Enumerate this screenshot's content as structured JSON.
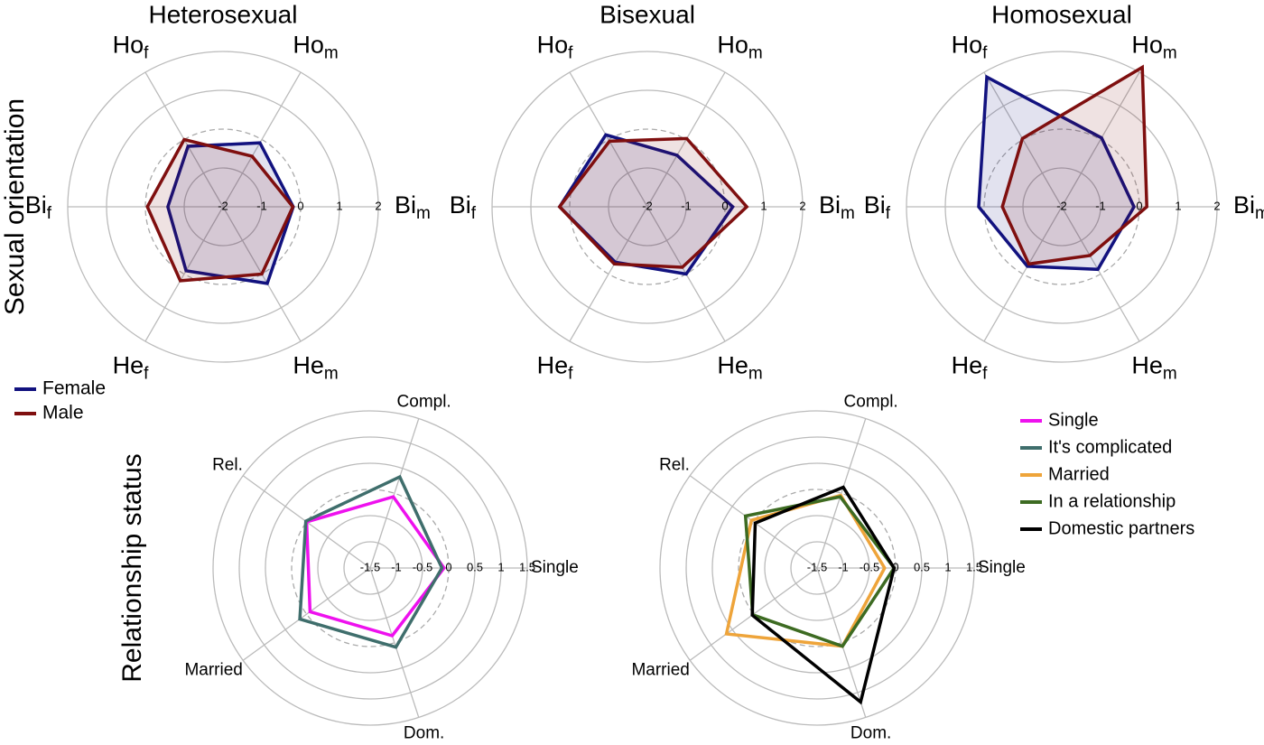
{
  "row_labels": [
    "Sexual orientation",
    "Relationship status"
  ],
  "chart_data": [
    {
      "type": "radar",
      "title": "Heterosexual",
      "categories": [
        "Bi",
        "Ho",
        "Ho",
        "Bi",
        "He",
        "He"
      ],
      "category_subscripts": [
        "m",
        "m",
        "f",
        "f",
        "f",
        "m"
      ],
      "ylim": [
        -2,
        2
      ],
      "yticks": [
        -2,
        -1,
        0,
        1,
        2
      ],
      "reference_circle": 0,
      "fill": true,
      "series": [
        {
          "name": "Female",
          "color": "#12127f",
          "values": [
            -0.19,
            -0.1,
            -0.2,
            -0.58,
            -0.1,
            0.28
          ]
        },
        {
          "name": "Male",
          "color": "#7f0f0f",
          "values": [
            -0.2,
            -0.5,
            0,
            -0.05,
            0.2,
            0
          ]
        }
      ]
    },
    {
      "type": "radar",
      "title": "Bisexual",
      "categories": [
        "Bi",
        "Ho",
        "Ho",
        "Bi",
        "He",
        "He"
      ],
      "category_subscripts": [
        "m",
        "m",
        "f",
        "f",
        "f",
        "m"
      ],
      "ylim": [
        -2,
        2
      ],
      "yticks": [
        -2,
        -1,
        0,
        1,
        2
      ],
      "reference_circle": 0,
      "fill": true,
      "series": [
        {
          "name": "Female",
          "color": "#12127f",
          "values": [
            0.2,
            -0.47,
            0.14,
            0.26,
            -0.35,
            0
          ]
        },
        {
          "name": "Male",
          "color": "#7f0f0f",
          "values": [
            0.56,
            0.03,
            -0.05,
            0.26,
            -0.3,
            -0.2
          ]
        }
      ]
    },
    {
      "type": "radar",
      "title": "Homosexual",
      "categories": [
        "Bi",
        "Ho",
        "Ho",
        "Bi",
        "He",
        "He"
      ],
      "category_subscripts": [
        "m",
        "m",
        "f",
        "f",
        "f",
        "m"
      ],
      "ylim": [
        -2,
        2
      ],
      "yticks": [
        -2,
        -1,
        0,
        1,
        2
      ],
      "reference_circle": 0,
      "fill": true,
      "series": [
        {
          "name": "Female",
          "color": "#12127f",
          "values": [
            -0.14,
            0.05,
            1.86,
            0.14,
            -0.23,
            -0.14
          ]
        },
        {
          "name": "Male",
          "color": "#7f0f0f",
          "values": [
            0.19,
            2.15,
            0.03,
            -0.47,
            -0.3,
            -0.55
          ]
        }
      ]
    },
    {
      "type": "radar",
      "categories": [
        "Single",
        "Compl.",
        "Rel.",
        "Married",
        "Dom."
      ],
      "ylim": [
        -1.5,
        1.5
      ],
      "yticks": [
        -1.5,
        -1,
        -0.5,
        0,
        0.5,
        1,
        1.5
      ],
      "reference_circle": 0,
      "fill": false,
      "series": [
        {
          "name": "Single",
          "color": "#ee11ee",
          "values": [
            -0.09,
            -0.07,
            0,
            -0.08,
            -0.14
          ]
        },
        {
          "name": "It's complicated",
          "color": "#3f6e6c",
          "values": [
            -0.13,
            0.33,
            0.02,
            0.16,
            0.09
          ]
        }
      ]
    },
    {
      "type": "radar",
      "categories": [
        "Single",
        "Compl.",
        "Rel.",
        "Married",
        "Dom."
      ],
      "ylim": [
        -1.5,
        1.5
      ],
      "yticks": [
        -1.5,
        -1,
        -0.5,
        0,
        0.5,
        1,
        1.5
      ],
      "reference_circle": 0,
      "fill": false,
      "series": [
        {
          "name": "Married",
          "color": "#eea43a",
          "values": [
            -0.21,
            -0.04,
            0.05,
            0.64,
            0.07
          ]
        },
        {
          "name": "In a relationship",
          "color": "#3d6b22",
          "values": [
            -0.03,
            -0.07,
            0.19,
            0.02,
            0.07
          ]
        },
        {
          "name": "Domestic partners",
          "color": "#000000",
          "values": [
            -0.03,
            0.12,
            -0.04,
            0.03,
            1.19
          ]
        }
      ]
    }
  ]
}
